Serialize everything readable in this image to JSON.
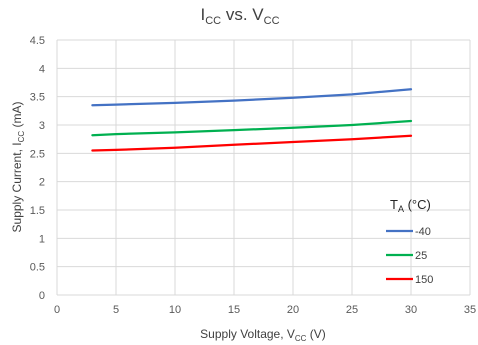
{
  "chart_data": {
    "type": "line",
    "title": {
      "main": "I",
      "sub": "CC",
      "mid": " vs. V",
      "sub2": "CC"
    },
    "xlabel": {
      "pre": "Supply Voltage, V",
      "sub": "CC",
      "post": " (V)"
    },
    "ylabel": {
      "pre": "Supply Current, I",
      "sub": "CC",
      "post": " (mA)"
    },
    "xlim": [
      0,
      35
    ],
    "ylim": [
      0,
      4.5
    ],
    "xticks": [
      0,
      5,
      10,
      15,
      20,
      25,
      30,
      35
    ],
    "yticks": [
      0,
      0.5,
      1,
      1.5,
      2,
      2.5,
      3,
      3.5,
      4,
      4.5
    ],
    "ytick_labels": [
      "0",
      "0.5",
      "1",
      "1.5",
      "2",
      "2.5",
      "3",
      "3.5",
      "4",
      "4.5"
    ],
    "grid": true,
    "legend": {
      "title": {
        "pre": "T",
        "sub": "A",
        "post": " (°C)"
      },
      "placement": "right"
    },
    "x": [
      3,
      5,
      10,
      15,
      20,
      25,
      30
    ],
    "series": [
      {
        "name": "-40",
        "color": "#4472C4",
        "values": [
          3.35,
          3.36,
          3.39,
          3.43,
          3.48,
          3.54,
          3.63
        ]
      },
      {
        "name": "25",
        "color": "#00B050",
        "values": [
          2.82,
          2.84,
          2.87,
          2.91,
          2.95,
          3.0,
          3.07
        ]
      },
      {
        "name": "150",
        "color": "#FF0000",
        "values": [
          2.55,
          2.56,
          2.6,
          2.65,
          2.7,
          2.75,
          2.81
        ]
      }
    ]
  }
}
